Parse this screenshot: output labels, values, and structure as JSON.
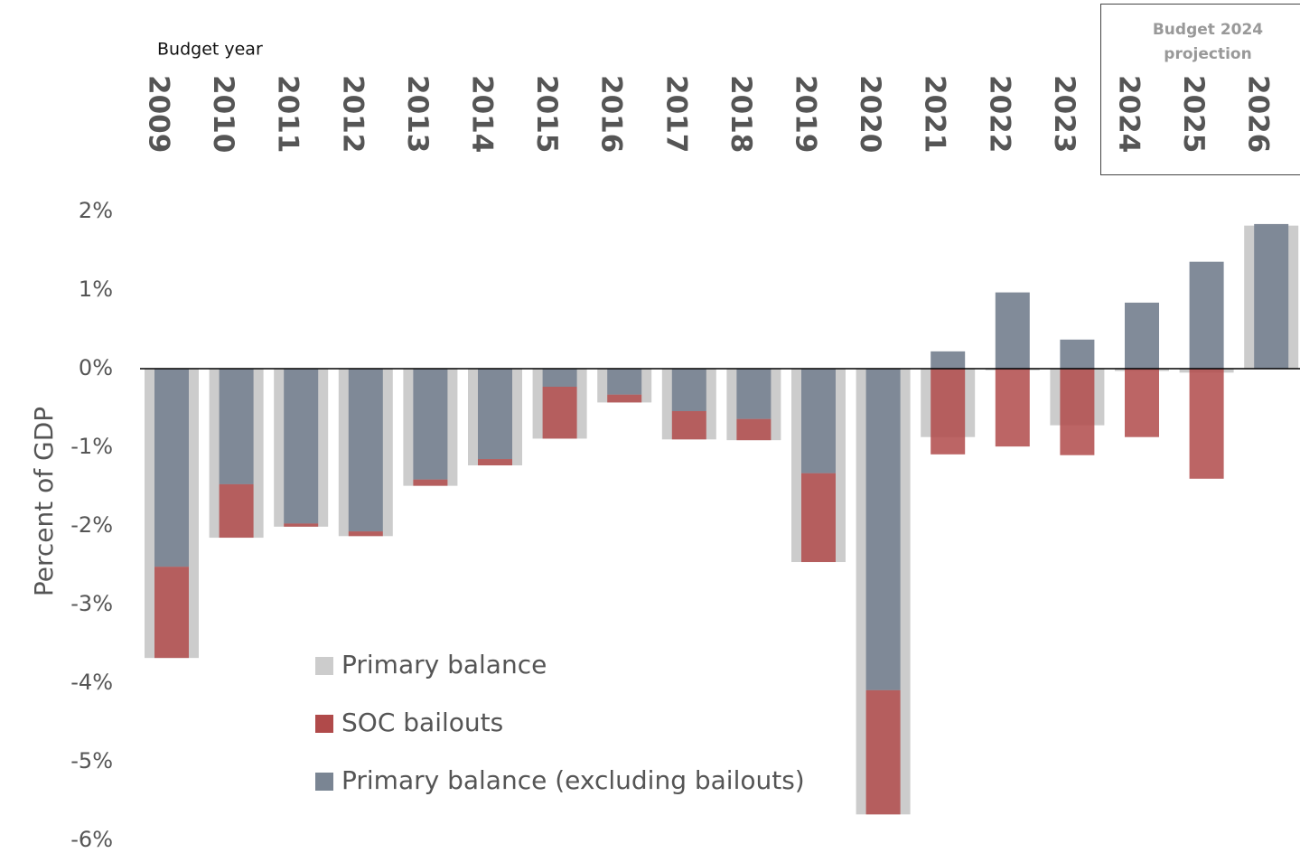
{
  "chart_data": {
    "type": "bar",
    "x_label": "Budget year",
    "y_label": "Percent of GDP",
    "annotation": "Budget 2024 projection",
    "categories": [
      "2009",
      "2010",
      "2011",
      "2012",
      "2013",
      "2014",
      "2015",
      "2016",
      "2017",
      "2018",
      "2019",
      "2020",
      "2021",
      "2022",
      "2023",
      "2024",
      "2025",
      "2026"
    ],
    "series": [
      {
        "name": "Primary balance",
        "color": "#cccccc",
        "values": [
          -3.68,
          -2.15,
          -2.01,
          -2.13,
          -1.49,
          -1.23,
          -0.89,
          -0.43,
          -0.9,
          -0.91,
          -2.46,
          -5.67,
          -0.87,
          -0.02,
          -0.72,
          -0.03,
          -0.05,
          1.82
        ]
      },
      {
        "name": "SOC bailouts",
        "color": "#b04a4a",
        "values": [
          -1.16,
          -0.68,
          -0.04,
          -0.06,
          -0.08,
          -0.08,
          -0.66,
          -0.1,
          -0.36,
          -0.27,
          -1.13,
          -1.58,
          -1.09,
          -0.99,
          -1.1,
          -0.87,
          -1.4,
          0
        ]
      },
      {
        "name": "Primary balance (excluding bailouts)",
        "color": "#7a8593",
        "values": [
          -2.52,
          -1.47,
          -1.97,
          -2.07,
          -1.41,
          -1.15,
          -0.23,
          -0.33,
          -0.54,
          -0.64,
          -1.33,
          -4.09,
          0.22,
          0.97,
          0.37,
          0.84,
          1.36,
          1.84
        ]
      }
    ],
    "ylim": [
      -6,
      2
    ],
    "yticks": [
      {
        "value": -6,
        "label": "-6%"
      },
      {
        "value": -5,
        "label": "-5%"
      },
      {
        "value": -4,
        "label": "-4%"
      },
      {
        "value": -3,
        "label": "-3%"
      },
      {
        "value": -2,
        "label": "-2%"
      },
      {
        "value": -1,
        "label": "-1%"
      },
      {
        "value": 0,
        "label": "0%"
      },
      {
        "value": 1,
        "label": "1%"
      },
      {
        "value": 2,
        "label": "2%"
      }
    ]
  }
}
